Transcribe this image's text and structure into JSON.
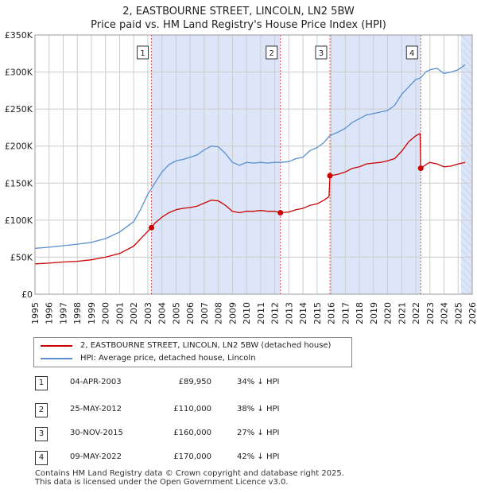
{
  "title": "2, EASTBOURNE STREET, LINCOLN, LN2 5BW",
  "subtitle": "Price paid vs. HM Land Registry's House Price Index (HPI)",
  "legend": {
    "property_label": "2, EASTBOURNE STREET, LINCOLN, LN2 5BW (detached house)",
    "hpi_label": "HPI: Average price, detached house, Lincoln"
  },
  "colors": {
    "property": "#cc0000",
    "hpi": "#5a8fd0",
    "shade": "#dde6f8",
    "grid": "#cccccc",
    "marker_line": "#e05050"
  },
  "sales": [
    {
      "num": "1",
      "date": "04-APR-2003",
      "price": "£89,950",
      "hpi": "34% ↓ HPI"
    },
    {
      "num": "2",
      "date": "25-MAY-2012",
      "price": "£110,000",
      "hpi": "38% ↓ HPI"
    },
    {
      "num": "3",
      "date": "30-NOV-2015",
      "price": "£160,000",
      "hpi": "27% ↓ HPI"
    },
    {
      "num": "4",
      "date": "09-MAY-2022",
      "price": "£170,000",
      "hpi": "42% ↓ HPI"
    }
  ],
  "footer": {
    "line1": "Contains HM Land Registry data © Crown copyright and database right 2025.",
    "line2": "This data is licensed under the Open Government Licence v3.0."
  },
  "chart_data": {
    "type": "line",
    "title": "2, EASTBOURNE STREET, LINCOLN, LN2 5BW",
    "subtitle": "Price paid vs. HM Land Registry's House Price Index (HPI)",
    "xlabel": "",
    "ylabel": "",
    "xlim": [
      1995,
      2026
    ],
    "ylim": [
      0,
      350000
    ],
    "grid": true,
    "legend_position": "below",
    "y_ticks": [
      {
        "value": 0,
        "label": "£0"
      },
      {
        "value": 50000,
        "label": "£50K"
      },
      {
        "value": 100000,
        "label": "£100K"
      },
      {
        "value": 150000,
        "label": "£150K"
      },
      {
        "value": 200000,
        "label": "£200K"
      },
      {
        "value": 250000,
        "label": "£250K"
      },
      {
        "value": 300000,
        "label": "£300K"
      },
      {
        "value": 350000,
        "label": "£350K"
      }
    ],
    "x_ticks": [
      "1995",
      "1996",
      "1997",
      "1998",
      "1999",
      "2000",
      "2001",
      "2002",
      "2003",
      "2004",
      "2005",
      "2006",
      "2007",
      "2008",
      "2009",
      "2010",
      "2011",
      "2012",
      "2013",
      "2014",
      "2015",
      "2016",
      "2017",
      "2018",
      "2019",
      "2020",
      "2021",
      "2022",
      "2023",
      "2024",
      "2025",
      "2026"
    ],
    "shaded_ranges": [
      [
        2003.26,
        2012.4
      ],
      [
        2015.91,
        2022.35
      ],
      [
        2025.2,
        2026
      ]
    ],
    "series": [
      {
        "name": "HPI: Average price, detached house, Lincoln",
        "points": [
          [
            1995.0,
            62000
          ],
          [
            1996.0,
            63500
          ],
          [
            1997.0,
            65500
          ],
          [
            1998.0,
            67500
          ],
          [
            1999.0,
            70000
          ],
          [
            2000.0,
            75000
          ],
          [
            2001.0,
            84000
          ],
          [
            2002.0,
            98000
          ],
          [
            2002.5,
            115000
          ],
          [
            2003.0,
            135000
          ],
          [
            2003.5,
            150000
          ],
          [
            2004.0,
            165000
          ],
          [
            2004.5,
            175000
          ],
          [
            2005.0,
            180000
          ],
          [
            2005.5,
            182000
          ],
          [
            2006.0,
            185000
          ],
          [
            2006.5,
            188000
          ],
          [
            2007.0,
            195000
          ],
          [
            2007.5,
            200000
          ],
          [
            2008.0,
            199000
          ],
          [
            2008.5,
            190000
          ],
          [
            2009.0,
            178000
          ],
          [
            2009.5,
            174000
          ],
          [
            2010.0,
            178000
          ],
          [
            2010.5,
            177000
          ],
          [
            2011.0,
            178000
          ],
          [
            2011.5,
            177000
          ],
          [
            2012.0,
            178000
          ],
          [
            2012.4,
            178000
          ],
          [
            2013.0,
            179000
          ],
          [
            2013.5,
            183000
          ],
          [
            2014.0,
            185000
          ],
          [
            2014.5,
            194000
          ],
          [
            2015.0,
            198000
          ],
          [
            2015.5,
            205000
          ],
          [
            2015.9,
            214000
          ],
          [
            2016.5,
            219000
          ],
          [
            2017.0,
            224000
          ],
          [
            2017.5,
            232000
          ],
          [
            2018.0,
            237000
          ],
          [
            2018.5,
            242000
          ],
          [
            2019.0,
            244000
          ],
          [
            2019.5,
            246000
          ],
          [
            2020.0,
            248000
          ],
          [
            2020.5,
            255000
          ],
          [
            2021.0,
            270000
          ],
          [
            2021.5,
            280000
          ],
          [
            2022.0,
            290000
          ],
          [
            2022.35,
            292000
          ],
          [
            2022.7,
            300000
          ],
          [
            2023.0,
            303000
          ],
          [
            2023.5,
            305000
          ],
          [
            2024.0,
            298000
          ],
          [
            2024.5,
            300000
          ],
          [
            2025.0,
            303000
          ],
          [
            2025.5,
            310000
          ]
        ]
      },
      {
        "name": "2, EASTBOURNE STREET, LINCOLN, LN2 5BW (detached house)",
        "points": [
          [
            1995.0,
            41000
          ],
          [
            1996.0,
            42000
          ],
          [
            1997.0,
            43500
          ],
          [
            1998.0,
            44500
          ],
          [
            1999.0,
            46500
          ],
          [
            2000.0,
            50000
          ],
          [
            2001.0,
            55000
          ],
          [
            2002.0,
            65000
          ],
          [
            2002.5,
            75000
          ],
          [
            2003.26,
            89950
          ],
          [
            2003.5,
            96000
          ],
          [
            2004.0,
            104000
          ],
          [
            2004.5,
            110000
          ],
          [
            2005.0,
            114000
          ],
          [
            2005.5,
            116000
          ],
          [
            2006.0,
            117000
          ],
          [
            2006.5,
            119000
          ],
          [
            2007.0,
            123000
          ],
          [
            2007.5,
            127000
          ],
          [
            2008.0,
            126000
          ],
          [
            2008.5,
            120000
          ],
          [
            2009.0,
            112000
          ],
          [
            2009.5,
            110000
          ],
          [
            2010.0,
            112000
          ],
          [
            2010.5,
            112000
          ],
          [
            2011.0,
            113000
          ],
          [
            2011.5,
            112000
          ],
          [
            2012.0,
            112000
          ],
          [
            2012.4,
            110000
          ],
          [
            2013.0,
            111000
          ],
          [
            2013.5,
            114000
          ],
          [
            2014.0,
            116000
          ],
          [
            2014.5,
            120000
          ],
          [
            2015.0,
            122000
          ],
          [
            2015.5,
            127000
          ],
          [
            2015.85,
            132000
          ],
          [
            2015.91,
            160000
          ],
          [
            2016.5,
            162000
          ],
          [
            2017.0,
            165000
          ],
          [
            2017.5,
            170000
          ],
          [
            2018.0,
            172000
          ],
          [
            2018.5,
            176000
          ],
          [
            2019.0,
            177000
          ],
          [
            2019.5,
            178000
          ],
          [
            2020.0,
            180000
          ],
          [
            2020.5,
            183000
          ],
          [
            2021.0,
            193000
          ],
          [
            2021.5,
            206000
          ],
          [
            2022.0,
            214000
          ],
          [
            2022.3,
            217000
          ],
          [
            2022.35,
            170000
          ],
          [
            2022.8,
            176000
          ],
          [
            2023.0,
            178000
          ],
          [
            2023.5,
            176000
          ],
          [
            2024.0,
            172000
          ],
          [
            2024.5,
            173000
          ],
          [
            2025.0,
            176000
          ],
          [
            2025.5,
            178000
          ]
        ]
      }
    ],
    "markers": [
      {
        "label": "1",
        "x": 2003.26,
        "y": 89950
      },
      {
        "label": "2",
        "x": 2012.4,
        "y": 110000
      },
      {
        "label": "3",
        "x": 2015.91,
        "y": 160000
      },
      {
        "label": "4",
        "x": 2022.35,
        "y": 170000
      }
    ]
  }
}
